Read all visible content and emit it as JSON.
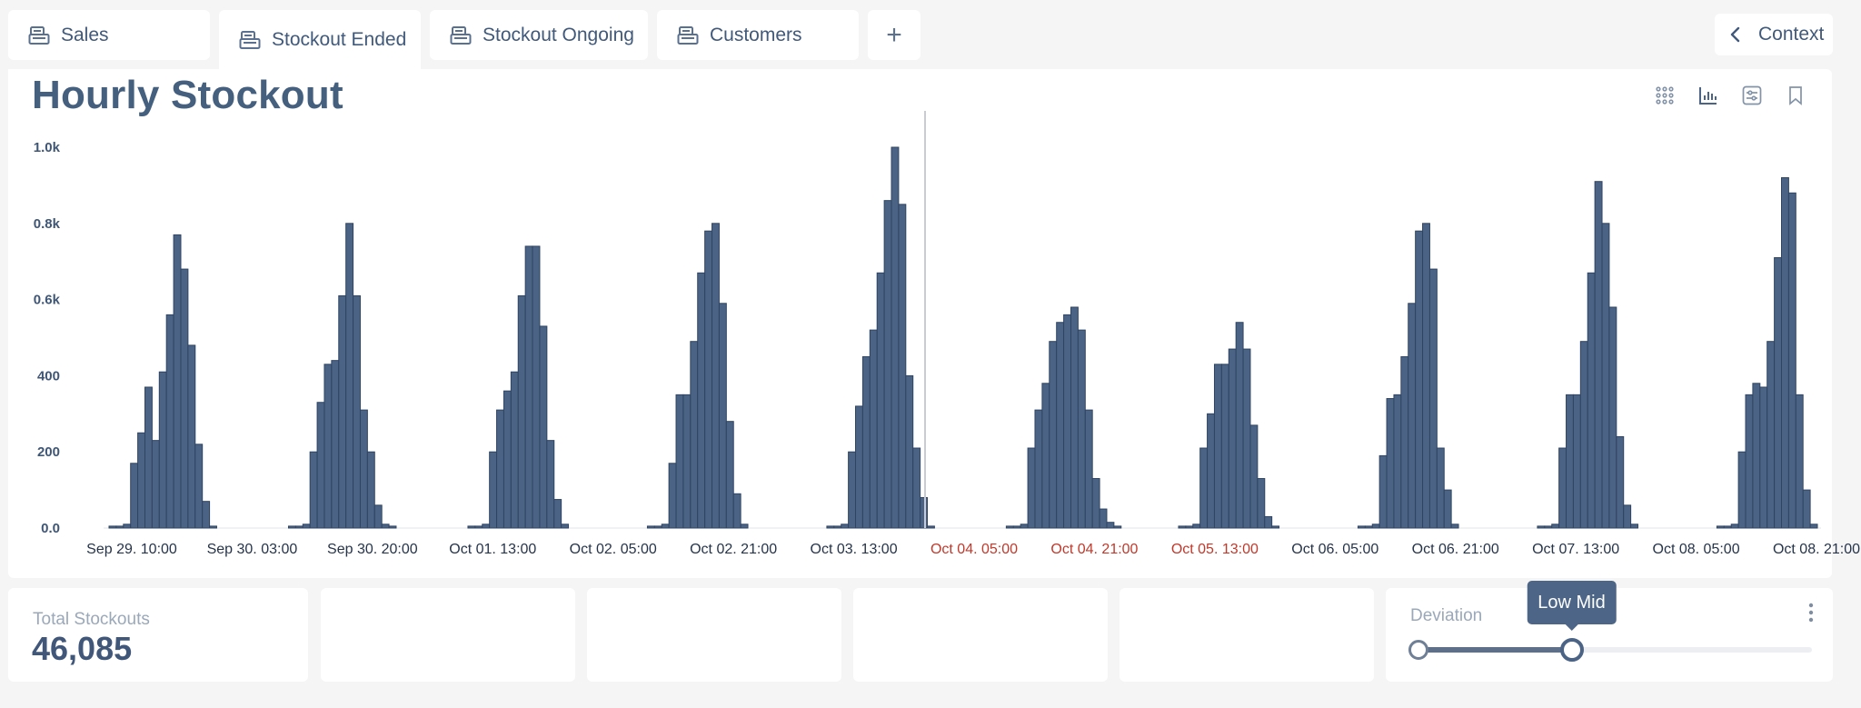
{
  "tabs": [
    {
      "label": "Sales",
      "icon": "register-icon",
      "active": false
    },
    {
      "label": "Stockout Ended",
      "icon": "register-icon",
      "active": true
    },
    {
      "label": "Stockout Ongoing",
      "icon": "register-icon",
      "active": false
    },
    {
      "label": "Customers",
      "icon": "register-icon",
      "active": false
    }
  ],
  "add_tab_label": "+",
  "context_label": "Context",
  "title": "Hourly Stockout",
  "toolbar": [
    "grid-view-icon",
    "bar-chart-icon",
    "filter-settings-icon",
    "bookmark-icon"
  ],
  "colors": {
    "bar": "#4b6385",
    "bar_edge": "#2f4462",
    "highlight_label": "#c0392b",
    "divider": "#c8cad6"
  },
  "chart_data": {
    "type": "bar",
    "y_ticks": [
      "0.0",
      "200",
      "400",
      "0.6k",
      "0.8k",
      "1.0k"
    ],
    "ylim": [
      0,
      1000
    ],
    "x_ticks": [
      {
        "label": "Sep 29. 10:00",
        "highlight": false
      },
      {
        "label": "Sep 30. 03:00",
        "highlight": false
      },
      {
        "label": "Sep 30. 20:00",
        "highlight": false
      },
      {
        "label": "Oct 01. 13:00",
        "highlight": false
      },
      {
        "label": "Oct 02. 05:00",
        "highlight": false
      },
      {
        "label": "Oct 02. 21:00",
        "highlight": false
      },
      {
        "label": "Oct 03. 13:00",
        "highlight": false
      },
      {
        "label": "Oct 04. 05:00",
        "highlight": true
      },
      {
        "label": "Oct 04. 21:00",
        "highlight": true
      },
      {
        "label": "Oct 05. 13:00",
        "highlight": true
      },
      {
        "label": "Oct 06. 05:00",
        "highlight": false
      },
      {
        "label": "Oct 06. 21:00",
        "highlight": false
      },
      {
        "label": "Oct 07. 13:00",
        "highlight": false
      },
      {
        "label": "Oct 08. 05:00",
        "highlight": false
      },
      {
        "label": "Oct 08. 21:00",
        "highlight": false
      }
    ],
    "bar_unit": "hour",
    "grid": false,
    "values": [
      5,
      5,
      10,
      170,
      250,
      370,
      230,
      410,
      560,
      770,
      680,
      480,
      220,
      70,
      5,
      0,
      0,
      0,
      0,
      0,
      0,
      0,
      0,
      0,
      0,
      5,
      5,
      10,
      200,
      330,
      430,
      440,
      610,
      800,
      610,
      310,
      200,
      60,
      10,
      5,
      0,
      0,
      0,
      0,
      0,
      0,
      0,
      0,
      0,
      0,
      5,
      5,
      10,
      200,
      310,
      360,
      410,
      610,
      740,
      740,
      530,
      230,
      75,
      10,
      0,
      0,
      0,
      0,
      0,
      0,
      0,
      0,
      0,
      0,
      0,
      5,
      5,
      10,
      170,
      350,
      350,
      490,
      670,
      780,
      800,
      590,
      280,
      90,
      10,
      0,
      0,
      0,
      0,
      0,
      0,
      0,
      0,
      0,
      0,
      0,
      5,
      5,
      10,
      200,
      320,
      450,
      520,
      670,
      860,
      1000,
      850,
      400,
      210,
      80,
      5,
      0,
      0,
      0,
      0,
      0,
      0,
      0,
      0,
      0,
      0,
      5,
      5,
      10,
      210,
      310,
      380,
      490,
      540,
      560,
      580,
      520,
      310,
      130,
      50,
      15,
      5,
      0,
      0,
      0,
      0,
      0,
      0,
      0,
      0,
      5,
      5,
      10,
      210,
      300,
      430,
      430,
      470,
      540,
      470,
      270,
      130,
      30,
      5,
      0,
      0,
      0,
      0,
      0,
      0,
      0,
      0,
      0,
      0,
      0,
      5,
      5,
      10,
      190,
      340,
      350,
      450,
      590,
      780,
      800,
      680,
      210,
      100,
      10,
      0,
      0,
      0,
      0,
      0,
      0,
      0,
      0,
      0,
      0,
      0,
      5,
      5,
      10,
      210,
      350,
      350,
      490,
      670,
      910,
      800,
      580,
      240,
      60,
      10,
      0,
      0,
      0,
      0,
      0,
      0,
      0,
      0,
      0,
      0,
      0,
      5,
      5,
      10,
      200,
      350,
      380,
      370,
      490,
      710,
      920,
      880,
      350,
      100,
      10
    ],
    "divider_after_label": "Oct 03. 13:00"
  },
  "kpi": {
    "label": "Total Stockouts",
    "value": "46,085"
  },
  "deviation": {
    "label": "Deviation",
    "tooltip": "Low Mid",
    "range_fraction": [
      0.0,
      0.3
    ]
  }
}
